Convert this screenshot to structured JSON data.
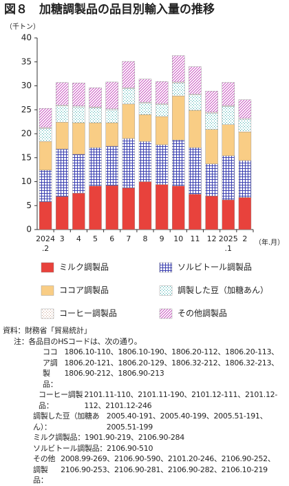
{
  "chart_data": {
    "type": "stacked_bar",
    "title": "図８　加糖調製品の品目別輸入量の推移",
    "y_label": "（千トン）",
    "x_label": "（年.月）",
    "categories": [
      "2024\n.2",
      "3",
      "4",
      "5",
      "6",
      "7",
      "8",
      "9",
      "10",
      "11",
      "12",
      "2025\n.1",
      "2"
    ],
    "ylim": [
      0,
      40
    ],
    "yticks": [
      0,
      5,
      10,
      15,
      20,
      25,
      30,
      35,
      40
    ],
    "series": [
      {
        "name": "ミルク調製品",
        "color": "#e8423c",
        "pattern": "solid",
        "values": [
          5.8,
          6.9,
          7.6,
          9.1,
          9.2,
          8.7,
          10.0,
          9.4,
          9.1,
          7.4,
          7.0,
          6.2,
          6.7
        ]
      },
      {
        "name": "ソルビトール調製品",
        "color": "#3a3fb0",
        "pattern": "grid",
        "values": [
          6.6,
          9.9,
          8.1,
          8.0,
          8.2,
          10.3,
          8.4,
          8.3,
          9.6,
          9.7,
          6.7,
          9.2,
          7.7
        ]
      },
      {
        "name": "ココア調製品",
        "color": "#f9cd85",
        "pattern": "solid",
        "values": [
          6.0,
          5.6,
          6.6,
          5.2,
          4.9,
          7.2,
          5.6,
          5.9,
          9.2,
          7.8,
          7.2,
          6.5,
          6.0
        ]
      },
      {
        "name": "調製した豆（加糖あん）",
        "color": "#2aa6a6",
        "pattern": "dots",
        "values": [
          2.7,
          3.4,
          3.3,
          3.1,
          2.7,
          3.2,
          2.4,
          2.5,
          2.7,
          3.2,
          3.4,
          3.8,
          2.6
        ]
      },
      {
        "name": "コーヒー調製品",
        "color": "#c9a08a",
        "pattern": "dots",
        "values": [
          0.2,
          0.2,
          0.2,
          0.2,
          0.2,
          0.2,
          0.2,
          0.2,
          0.2,
          0.2,
          0.2,
          0.2,
          0.2
        ]
      },
      {
        "name": "その他調製品",
        "color": "#c23cb8",
        "pattern": "diagonal",
        "values": [
          4.0,
          4.7,
          4.8,
          4.0,
          5.6,
          5.5,
          4.8,
          4.6,
          5.5,
          5.7,
          4.4,
          4.8,
          3.9
        ]
      }
    ]
  },
  "notes": {
    "source": "資料：財務省「貿易統計」",
    "note": "注：各品目のHSコードは、次の通り。",
    "items": [
      {
        "label": "ココア調製品：",
        "codes": "1806.10-110、1806.10-190、1806.20-112、1806.20-113、1806.20-121、1806.20-129、1806.32-212、1806.32-213、1806.90-212、1806.90-213"
      },
      {
        "label": "コーヒー調製品：",
        "codes": "2101.11-110、2101.11-190、2101.12-111、2101.12-112、2101.12-246"
      },
      {
        "label": "調製した豆（加糖あん）：",
        "codes": "2005.40-191、2005.40-199、2005.51-191、2005.51-199"
      },
      {
        "label": "ミルク調製品：",
        "codes": "1901.90-219、2106.90-284"
      },
      {
        "label": "ソルビトール調製品：",
        "codes": "2106.90-510"
      },
      {
        "label": "その他調製品：",
        "codes": "2008.99-269、2106.90-590、2101.20-246、2106.90-252、2106.90-253、2106.90-281、2106.90-282、2106.10-219"
      }
    ]
  }
}
